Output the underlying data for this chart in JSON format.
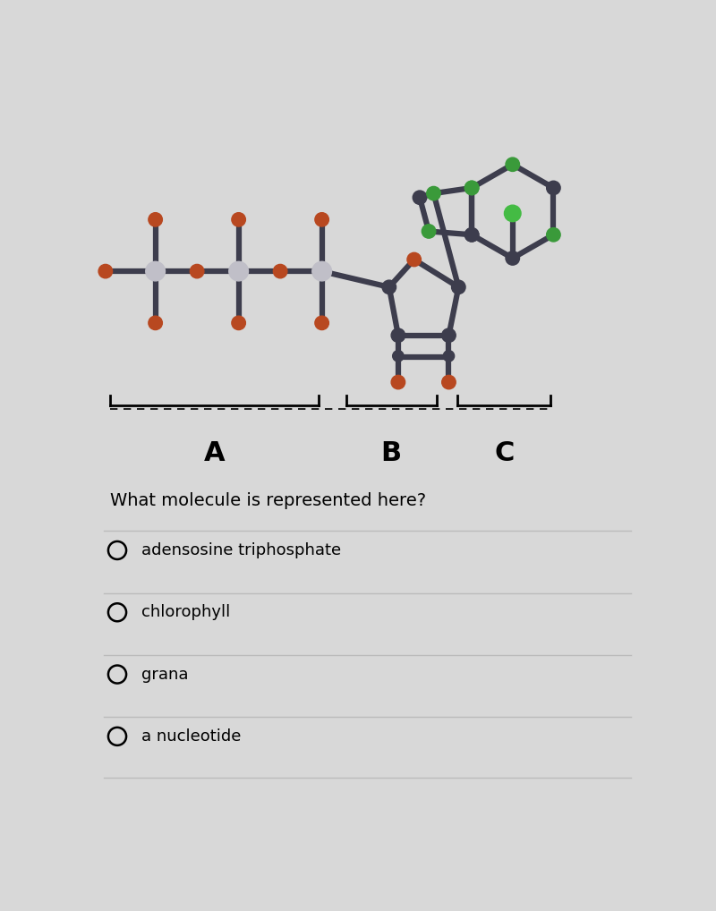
{
  "bg_color": "#d8d8d8",
  "question_text": "What molecule is represented here?",
  "options": [
    "adensosine triphosphate",
    "chlorophyll",
    "grana",
    "a nucleotide"
  ],
  "atom_colors": {
    "dark_gray": "#3d3d4d",
    "light_gray": "#c0bfc8",
    "orange_red": "#b84820",
    "green": "#3a9a3a",
    "bright_green": "#44bb44"
  }
}
